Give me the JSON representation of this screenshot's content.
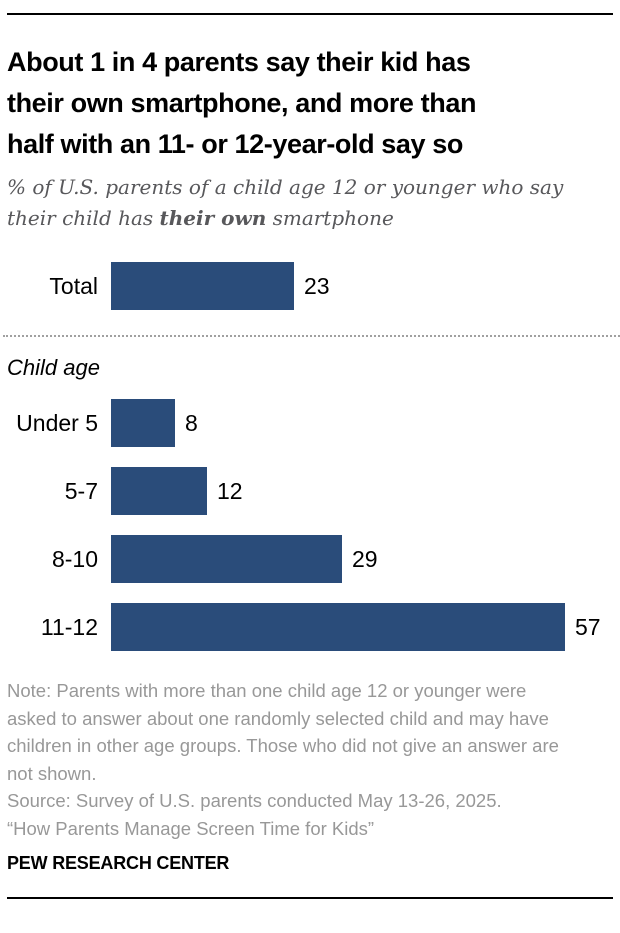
{
  "header": {
    "title_lines": [
      "About 1 in 4 parents say their kid has",
      "their own smartphone, and more than",
      "half with an 11- or 12-year-old say so"
    ],
    "subtitle": {
      "line1": "% of U.S. parents of a child age 12 or younger who say",
      "line2_pre": "their child has ",
      "line2_bold": "their own",
      "line2_post": " smartphone"
    }
  },
  "chart_data": {
    "type": "bar",
    "orientation": "horizontal",
    "unit": "%",
    "total": {
      "label": "Total",
      "value": 23
    },
    "group_label": "Child age",
    "categories": [
      "Under 5",
      "5-7",
      "8-10",
      "11-12"
    ],
    "values": [
      8,
      12,
      29,
      57
    ],
    "value_labels_shown": true,
    "axis_shown": false,
    "grid": false,
    "legend": "none",
    "xlim": [
      0,
      63
    ],
    "bar_color": "#2a4c7a"
  },
  "footer": {
    "note_lines": [
      "Note: Parents with more than one child age 12 or younger were",
      "asked to answer about one randomly selected child and may have",
      "children in other age groups. Those who did not give an answer are",
      "not shown."
    ],
    "source": "Source: Survey of U.S. parents conducted May 13-26, 2025.",
    "report": "“How Parents Manage Screen Time for Kids”",
    "brand": "PEW RESEARCH CENTER"
  }
}
